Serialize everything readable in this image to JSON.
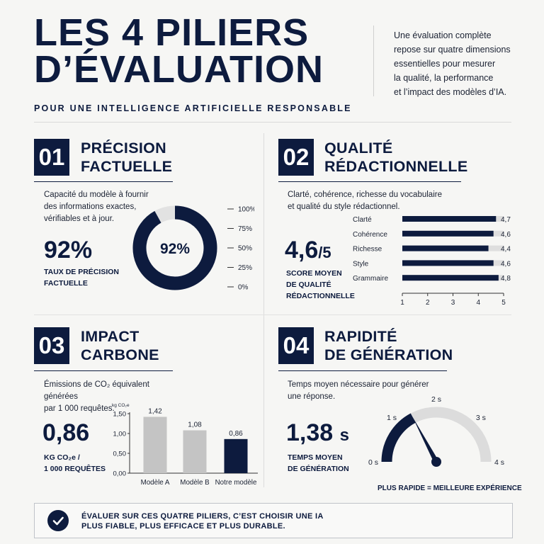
{
  "header": {
    "title_line1": "LES 4 PILIERS",
    "title_line2": "D’ÉVALUATION",
    "subtitle": "POUR UNE INTELLIGENCE ARTIFICIELLE RESPONSABLE",
    "intro_lines": [
      "Une évaluation complète",
      "repose sur quatre dimensions",
      "essentielles pour mesurer",
      "la qualité, la performance",
      "et l’impact des modèles d’IA."
    ]
  },
  "pillars": [
    {
      "number": "01",
      "title_lines": [
        "PRÉCISION",
        "FACTUELLE"
      ],
      "desc_lines": [
        "Capacité du modèle à fournir",
        "des informations exactes,",
        "vérifiables et à jour."
      ],
      "value": "92%",
      "caption_lines": [
        "TAUX DE PRÉCISION",
        "FACTUELLE"
      ]
    },
    {
      "number": "02",
      "title_lines": [
        "QUALITÉ",
        "RÉDACTIONNELLE"
      ],
      "desc_lines": [
        "Clarté, cohérence, richesse du vocabulaire",
        "et qualité du style rédactionnel."
      ],
      "value": "4,6",
      "value_suffix": "/5",
      "caption_lines": [
        "SCORE MOYEN",
        "DE QUALITÉ",
        "RÉDACTIONNELLE"
      ]
    },
    {
      "number": "03",
      "title_lines": [
        "IMPACT",
        "CARBONE"
      ],
      "desc_lines": [
        "Émissions de CO₂ équivalent générées",
        "par 1 000 requêtes."
      ],
      "value": "0,86",
      "caption_lines": [
        "KG CO₂e /",
        "1 000 REQUÊTES"
      ]
    },
    {
      "number": "04",
      "title_lines": [
        "RAPIDITÉ",
        "DE GÉNÉRATION"
      ],
      "desc_lines": [
        "Temps moyen nécessaire pour générer",
        "une réponse."
      ],
      "value": "1,38",
      "value_unit": "s",
      "caption_lines": [
        "TEMPS MOYEN",
        "DE GÉNÉRATION"
      ],
      "gauge_note": "PLUS RAPIDE = MEILLEURE EXPÉRIENCE"
    }
  ],
  "chart_data": [
    {
      "type": "pie",
      "style": "donut",
      "center_label": "92%",
      "values": [
        92,
        8
      ],
      "scale_ticks": [
        "100%",
        "75%",
        "50%",
        "25%",
        "0%"
      ],
      "colors": [
        "#0d1b3e",
        "#e2e2e2"
      ]
    },
    {
      "type": "bar",
      "orientation": "horizontal",
      "categories": [
        "Clarté",
        "Cohérence",
        "Richesse",
        "Style",
        "Grammaire"
      ],
      "values": [
        4.7,
        4.6,
        4.4,
        4.6,
        4.8
      ],
      "value_labels": [
        "4,7",
        "4,6",
        "4,4",
        "4,6",
        "4,8"
      ],
      "xlim": [
        1,
        5
      ],
      "x_ticks": [
        "1",
        "2",
        "3",
        "4",
        "5"
      ]
    },
    {
      "type": "bar",
      "categories": [
        "Modèle A",
        "Modèle B",
        "Notre modèle"
      ],
      "values": [
        1.42,
        1.08,
        0.86
      ],
      "value_labels": [
        "1,42",
        "1,08",
        "0,86"
      ],
      "ylabel": "kg CO₂e",
      "ylim": [
        0,
        1.5
      ],
      "y_ticks": [
        "1,50",
        "1,00",
        "0,50",
        "0,00"
      ],
      "colors": [
        "#c4c4c4",
        "#c4c4c4",
        "#0d1b3e"
      ]
    },
    {
      "type": "gauge",
      "value": 1.38,
      "range": [
        0,
        4
      ],
      "tick_labels": [
        "0 s",
        "1 s",
        "2 s",
        "3 s",
        "4 s"
      ]
    }
  ],
  "footer": {
    "lines": [
      "ÉVALUER SUR CES QUATRE PILIERS, C’EST CHOISIR UNE IA",
      "PLUS FIABLE, PLUS EFFICACE ET PLUS DURABLE."
    ],
    "icon": "check-circle-icon"
  }
}
